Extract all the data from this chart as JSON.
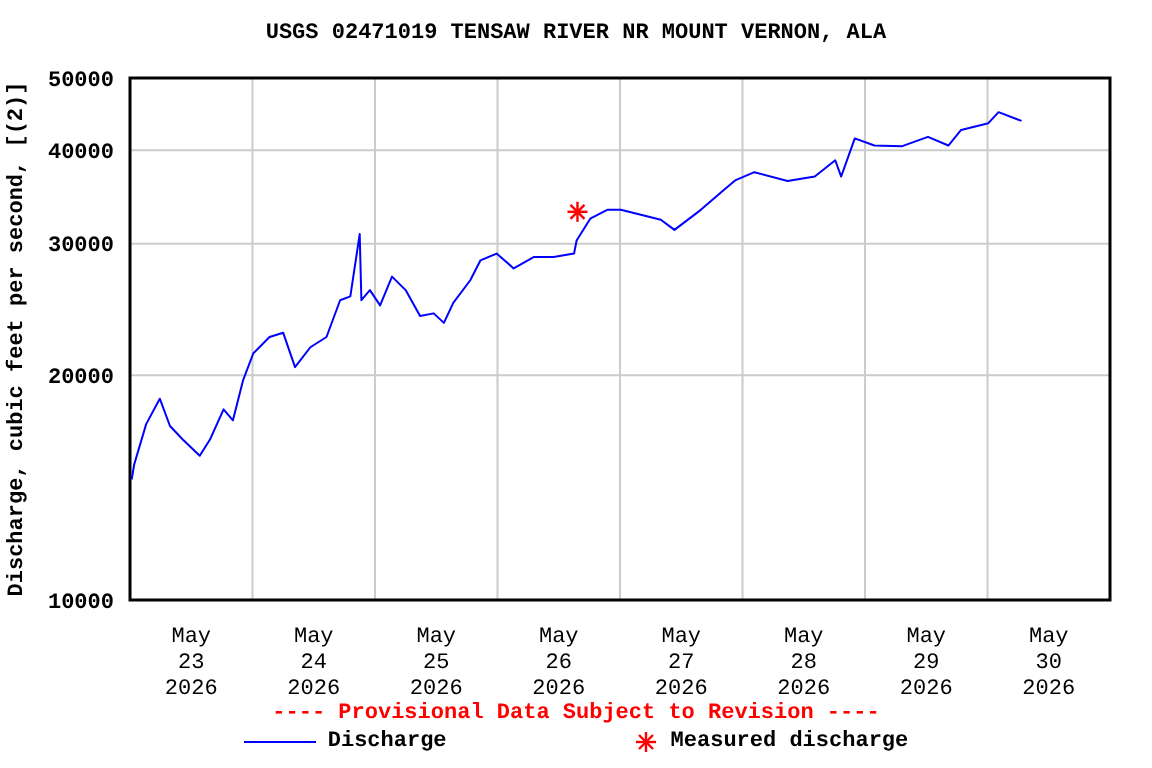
{
  "chart_data": {
    "type": "line",
    "title": "USGS 02471019 TENSAW RIVER NR MOUNT VERNON, ALA",
    "ylabel": "Discharge, cubic feet per second, [(2)]",
    "annotations": [
      "---- Provisional Data Subject to Revision ----"
    ],
    "log": "y",
    "grid": true,
    "legend": "bottom",
    "line_style": "solid",
    "xlim": [
      "2026-05-23T00:00",
      "2026-05-31T00:00"
    ],
    "xticks": [
      {
        "value": "2026-05-23T00:00",
        "label": null
      },
      {
        "value": "2026-05-23T12:00",
        "label": "May\n23\n2026"
      },
      {
        "value": "2026-05-24T00:00",
        "label": null
      },
      {
        "value": "2026-05-24T12:00",
        "label": "May\n24\n2026"
      },
      {
        "value": "2026-05-25T00:00",
        "label": null
      },
      {
        "value": "2026-05-25T12:00",
        "label": "May\n25\n2026"
      },
      {
        "value": "2026-05-26T00:00",
        "label": null
      },
      {
        "value": "2026-05-26T12:00",
        "label": "May\n26\n2026"
      },
      {
        "value": "2026-05-27T00:00",
        "label": null
      },
      {
        "value": "2026-05-27T12:00",
        "label": "May\n27\n2026"
      },
      {
        "value": "2026-05-28T00:00",
        "label": null
      },
      {
        "value": "2026-05-28T12:00",
        "label": "May\n28\n2026"
      },
      {
        "value": "2026-05-29T00:00",
        "label": null
      },
      {
        "value": "2026-05-29T12:00",
        "label": "May\n29\n2026"
      },
      {
        "value": "2026-05-30T00:00",
        "label": null
      },
      {
        "value": "2026-05-30T12:00",
        "label": "May\n30\n2026"
      },
      {
        "value": "2026-05-31T00:00",
        "label": null
      }
    ],
    "ylim": [
      10000,
      50000
    ],
    "yticks": [
      10000,
      20000,
      30000,
      40000,
      50000
    ],
    "series": [
      {
        "name": "Discharge",
        "color": "#0000ff",
        "marker": "none",
        "x": [
          "2026-05-23T00:20",
          "2026-05-23T00:50",
          "2026-05-23T03:10",
          "2026-05-23T05:50",
          "2026-05-23T07:50",
          "2026-05-23T10:20",
          "2026-05-23T13:40",
          "2026-05-23T15:40",
          "2026-05-23T18:20",
          "2026-05-23T20:10",
          "2026-05-23T22:10",
          "2026-05-24T00:10",
          "2026-05-24T03:20",
          "2026-05-24T06:00",
          "2026-05-24T08:20",
          "2026-05-24T11:20",
          "2026-05-24T14:30",
          "2026-05-24T17:10",
          "2026-05-24T19:10",
          "2026-05-24T21:00",
          "2026-05-24T21:20",
          "2026-05-24T23:00",
          "2026-05-25T01:00",
          "2026-05-25T03:20",
          "2026-05-25T06:00",
          "2026-05-25T08:50",
          "2026-05-25T11:30",
          "2026-05-25T13:30",
          "2026-05-25T15:20",
          "2026-05-25T18:40",
          "2026-05-25T20:40",
          "2026-05-25T23:50",
          "2026-05-26T03:10",
          "2026-05-26T07:10",
          "2026-05-26T11:00",
          "2026-05-26T15:00",
          "2026-05-26T15:30",
          "2026-05-26T18:10",
          "2026-05-26T21:30",
          "2026-05-27T00:10",
          "2026-05-27T08:00",
          "2026-05-27T10:40",
          "2026-05-27T15:50",
          "2026-05-27T20:20",
          "2026-05-27T22:40",
          "2026-05-28T02:20",
          "2026-05-28T08:50",
          "2026-05-28T14:10",
          "2026-05-28T18:10",
          "2026-05-28T19:20",
          "2026-05-28T22:00",
          "2026-05-29T01:50",
          "2026-05-29T07:10",
          "2026-05-29T12:20",
          "2026-05-29T16:20",
          "2026-05-29T18:50",
          "2026-05-30T00:10",
          "2026-05-30T02:10",
          "2026-05-30T06:40"
        ],
        "values": [
          14500,
          15200,
          17200,
          18600,
          17100,
          16400,
          15600,
          16400,
          18000,
          17400,
          19700,
          21400,
          22500,
          22800,
          20500,
          21800,
          22500,
          25200,
          25500,
          30900,
          25200,
          26000,
          24800,
          27100,
          26000,
          24000,
          24200,
          23500,
          25000,
          26800,
          28500,
          29100,
          27800,
          28800,
          28800,
          29100,
          30300,
          32400,
          33300,
          33300,
          32300,
          31300,
          33300,
          35400,
          36500,
          37400,
          36400,
          36900,
          38800,
          36900,
          41500,
          40600,
          40500,
          41700,
          40600,
          42600,
          43500,
          45000,
          43800
        ]
      },
      {
        "name": "Measured discharge",
        "type": "scatter",
        "color": "#ff0000",
        "marker": "cross",
        "x": [
          "2026-05-26T15:40"
        ],
        "values": [
          33100
        ]
      }
    ]
  }
}
